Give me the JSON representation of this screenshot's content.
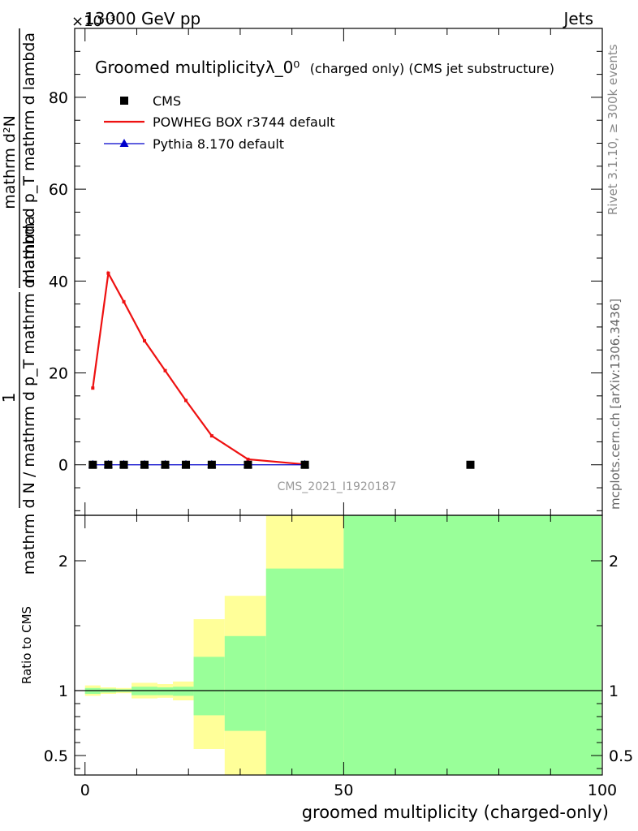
{
  "header": {
    "left": "13000 GeV pp",
    "right": "Jets",
    "exponent": "×10⁻³"
  },
  "side_text": {
    "rivet": "Rivet 3.1.10, ≥ 300k events",
    "site": "mcplots.cern.ch [arXiv:1306.3436]"
  },
  "chart_data": {
    "type": "line",
    "title_main": "Groomed multiplicityλ_0⁰",
    "title_sub": "(charged only) (CMS jet substructure)",
    "analysis_label": "CMS_2021_I1920187",
    "xlabel": "groomed multiplicity (charged-only)",
    "ylabel_top": {
      "numerator": "1",
      "denominator": "mathrm d N / mathrm d p_T mathrm d lambda"
    },
    "ylabel_top_right": {
      "numerator": "mathrm d²N",
      "denominator": "mathrm d p_T mathrm d lambda"
    },
    "ylabel_ratio": "Ratio to CMS",
    "xlim": [
      -2,
      100
    ],
    "ylim": [
      -11,
      95
    ],
    "ratio_ylim": [
      0.35,
      2.35
    ],
    "x_ticks": [
      0,
      50,
      100
    ],
    "y_ticks": [
      0,
      20,
      40,
      60,
      80
    ],
    "ratio_ticks": [
      0.5,
      1,
      2
    ],
    "legend": [
      {
        "name": "CMS",
        "color": "#000000",
        "marker": "square"
      },
      {
        "name": "POWHEG BOX r3744 default",
        "color": "#ee1111",
        "marker": "line"
      },
      {
        "name": "Pythia 8.170 default",
        "color": "#0000cc",
        "marker": "triangle"
      }
    ],
    "series": [
      {
        "name": "CMS",
        "x": [
          1.5,
          4.5,
          7.5,
          11.5,
          15.5,
          19.5,
          24.5,
          31.5,
          42.5,
          74.5
        ],
        "y": [
          0,
          0,
          0,
          0,
          0,
          0,
          0,
          0,
          0,
          0
        ]
      },
      {
        "name": "POWHEG BOX r3744 default",
        "x": [
          1.5,
          4.5,
          7.5,
          11.5,
          15.5,
          19.5,
          24.5,
          31.5,
          42.5
        ],
        "y": [
          16.7,
          41.7,
          35.5,
          27.0,
          20.5,
          14.0,
          6.3,
          1.2,
          0.1
        ]
      },
      {
        "name": "Pythia 8.170 default",
        "x": [
          1.5,
          4.5,
          7.5,
          11.5,
          15.5,
          19.5,
          24.5,
          31.5,
          42.5
        ],
        "y": [
          0,
          0,
          0,
          0,
          0,
          0,
          0,
          0,
          0
        ]
      }
    ],
    "ratio_bands": [
      {
        "x0": 0,
        "x1": 3,
        "green": [
          0.975,
          1.02
        ],
        "yellow": [
          0.96,
          1.04
        ]
      },
      {
        "x0": 3,
        "x1": 6,
        "green": [
          0.985,
          1.015
        ],
        "yellow": [
          0.975,
          1.025
        ]
      },
      {
        "x0": 6,
        "x1": 9,
        "green": [
          0.99,
          1.01
        ],
        "yellow": [
          0.98,
          1.02
        ]
      },
      {
        "x0": 9,
        "x1": 14,
        "green": [
          0.965,
          1.03
        ],
        "yellow": [
          0.94,
          1.06
        ]
      },
      {
        "x0": 14,
        "x1": 17,
        "green": [
          0.965,
          1.025
        ],
        "yellow": [
          0.945,
          1.05
        ]
      },
      {
        "x0": 17,
        "x1": 21,
        "green": [
          0.96,
          1.03
        ],
        "yellow": [
          0.925,
          1.07
        ]
      },
      {
        "x0": 21,
        "x1": 27,
        "green": [
          0.81,
          1.26
        ],
        "yellow": [
          0.55,
          1.55
        ]
      },
      {
        "x0": 27,
        "x1": 35,
        "green": [
          0.69,
          1.42
        ],
        "yellow": [
          0.35,
          1.73
        ]
      },
      {
        "x0": 35,
        "x1": 50,
        "green": [
          0.35,
          1.94
        ],
        "yellow": [
          0.35,
          2.35
        ]
      },
      {
        "x0": 50,
        "x1": 100,
        "green": [
          0.35,
          2.35
        ],
        "yellow": [
          0.35,
          2.35
        ]
      }
    ]
  }
}
